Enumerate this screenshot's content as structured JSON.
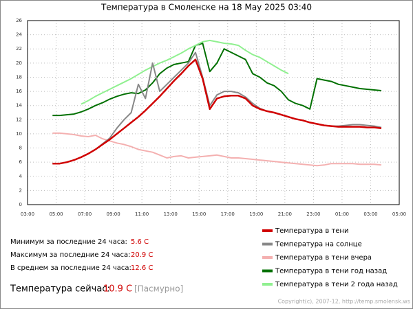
{
  "chart_data": {
    "type": "line",
    "title": "Температура в Смоленске на 18 May 2025 03:40",
    "xlim": [
      3,
      29
    ],
    "xticks": [
      {
        "value": 3,
        "label": "03:00"
      },
      {
        "value": 5,
        "label": "05:00"
      },
      {
        "value": 7,
        "label": "07:00"
      },
      {
        "value": 9,
        "label": "09:00"
      },
      {
        "value": 11,
        "label": "11:00"
      },
      {
        "value": 13,
        "label": "13:00"
      },
      {
        "value": 15,
        "label": "15:00"
      },
      {
        "value": 17,
        "label": "17:00"
      },
      {
        "value": 19,
        "label": "19:00"
      },
      {
        "value": 21,
        "label": "21:00"
      },
      {
        "value": 23,
        "label": "23:00"
      },
      {
        "value": 25,
        "label": "01:00"
      },
      {
        "value": 27,
        "label": "03:00"
      },
      {
        "value": 29,
        "label": "05:00"
      }
    ],
    "ylim": [
      0,
      26
    ],
    "yticks": [
      0,
      2,
      4,
      6,
      8,
      10,
      12,
      14,
      16,
      18,
      20,
      22,
      24,
      26
    ],
    "grid": true,
    "x": [
      4.75,
      5.25,
      5.75,
      6.25,
      6.75,
      7.25,
      7.75,
      8.25,
      8.75,
      9.25,
      9.75,
      10.25,
      10.75,
      11.25,
      11.75,
      12.25,
      12.75,
      13.25,
      13.75,
      14.25,
      14.75,
      15.25,
      15.75,
      16.25,
      16.75,
      17.25,
      17.75,
      18.25,
      18.75,
      19.25,
      19.75,
      20.25,
      20.75,
      21.25,
      21.75,
      22.25,
      22.75,
      23.25,
      23.75,
      24.25,
      24.75,
      25.25,
      25.75,
      26.25,
      26.75,
      27.25,
      27.75
    ],
    "series": [
      {
        "name": "Температура в тени год назад",
        "color": "#007000",
        "values": [
          12.6,
          12.6,
          12.7,
          12.8,
          13.1,
          13.5,
          14.0,
          14.4,
          14.9,
          15.3,
          15.6,
          15.8,
          15.7,
          16.2,
          17.2,
          18.5,
          19.3,
          19.8,
          20.0,
          20.2,
          22.5,
          22.8,
          18.8,
          20.0,
          22.0,
          21.5,
          21.0,
          20.5,
          18.5,
          18.0,
          17.2,
          16.8,
          16.0,
          14.8,
          14.3,
          14.0,
          13.5,
          17.8,
          17.6,
          17.4,
          17.0,
          16.8,
          16.6,
          16.4,
          16.3,
          16.2,
          16.1
        ]
      },
      {
        "name": "Температура в тени 2 года назад",
        "color": "#90f090",
        "values": [
          null,
          null,
          null,
          null,
          14.2,
          14.7,
          15.3,
          15.8,
          16.3,
          16.8,
          17.3,
          17.8,
          18.4,
          19.0,
          19.5,
          20.0,
          20.4,
          20.9,
          21.4,
          22.0,
          22.5,
          23.0,
          23.2,
          23.0,
          22.8,
          22.7,
          22.5,
          21.8,
          21.2,
          20.8,
          20.2,
          19.6,
          19.0,
          18.5,
          null,
          null,
          null,
          null,
          null,
          null,
          null,
          null,
          null,
          null,
          null,
          null,
          null
        ]
      },
      {
        "name": "Температура в тени вчера",
        "color": "#f4b0b0",
        "values": [
          10.1,
          10.1,
          10.0,
          9.9,
          9.7,
          9.6,
          9.8,
          9.3,
          9.0,
          8.7,
          8.5,
          8.2,
          7.8,
          7.6,
          7.4,
          7.0,
          6.6,
          6.8,
          6.9,
          6.6,
          6.7,
          6.8,
          6.9,
          7.0,
          6.8,
          6.6,
          6.6,
          6.5,
          6.4,
          6.3,
          6.2,
          6.1,
          6.0,
          5.9,
          5.8,
          5.7,
          5.6,
          5.5,
          5.6,
          5.8,
          5.8,
          5.8,
          5.8,
          5.7,
          5.7,
          5.7,
          5.6
        ]
      },
      {
        "name": "Температура на солнце",
        "color": "#888888",
        "values": [
          5.8,
          5.8,
          6.0,
          6.3,
          6.7,
          7.2,
          7.8,
          8.6,
          9.4,
          10.8,
          12.0,
          13.0,
          17.0,
          15.0,
          20.0,
          16.0,
          17.0,
          18.0,
          19.0,
          20.0,
          21.5,
          18.0,
          14.0,
          15.5,
          16.0,
          16.0,
          15.8,
          15.2,
          14.3,
          13.6,
          13.2,
          13.0,
          12.7,
          12.4,
          12.1,
          11.9,
          11.6,
          11.4,
          11.2,
          11.1,
          11.1,
          11.2,
          11.3,
          11.3,
          11.2,
          11.1,
          10.9
        ]
      },
      {
        "name": "Температура в тени",
        "color": "#d00000",
        "values": [
          5.8,
          5.8,
          6.0,
          6.3,
          6.7,
          7.2,
          7.8,
          8.5,
          9.2,
          10.0,
          10.8,
          11.6,
          12.4,
          13.3,
          14.3,
          15.3,
          16.4,
          17.5,
          18.5,
          19.6,
          20.5,
          17.8,
          13.5,
          15.0,
          15.3,
          15.4,
          15.4,
          15.0,
          14.0,
          13.5,
          13.2,
          13.0,
          12.7,
          12.4,
          12.1,
          11.9,
          11.6,
          11.4,
          11.2,
          11.1,
          11.0,
          11.0,
          11.0,
          11.0,
          10.9,
          10.9,
          10.8
        ]
      }
    ],
    "legend_order": [
      "Температура в тени",
      "Температура на солнце",
      "Температура в тени вчера",
      "Температура в тени год назад",
      "Температура в тени 2 года назад"
    ]
  },
  "stats": {
    "rows": [
      {
        "label": "Минимум за последние 24 часа:",
        "value": "5.6 C"
      },
      {
        "label": "Максимум за последние 24 часа:",
        "value": "20.9 C"
      },
      {
        "label": "В среднем за последние 24 часа:",
        "value": "12.6 C"
      }
    ],
    "current_label": "Температура сейчас:",
    "current_value": "10.9 C",
    "current_weather": "[Пасмурно]"
  },
  "copyright": "Copyright(c), 2007-12, http://temp.smolensk.ws"
}
